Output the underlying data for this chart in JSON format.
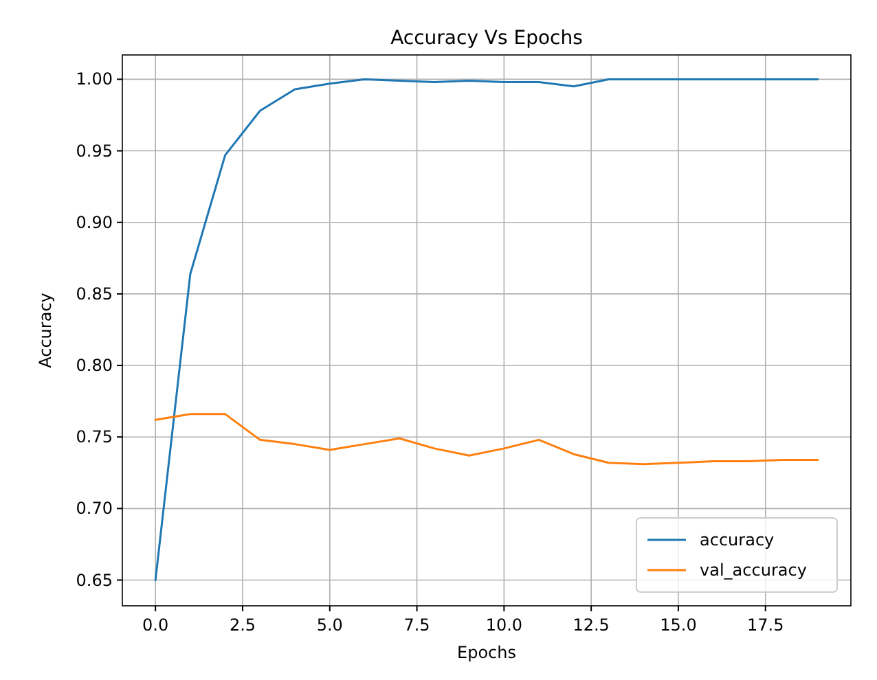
{
  "chart_data": {
    "type": "line",
    "title": "Accuracy Vs Epochs",
    "xlabel": "Epochs",
    "ylabel": "Accuracy",
    "x": [
      0,
      1,
      2,
      3,
      4,
      5,
      6,
      7,
      8,
      9,
      10,
      11,
      12,
      13,
      14,
      15,
      16,
      17,
      18,
      19
    ],
    "series": [
      {
        "name": "accuracy",
        "color": "#1f77b4",
        "values": [
          0.65,
          0.864,
          0.947,
          0.978,
          0.993,
          0.997,
          1.0,
          0.999,
          0.998,
          0.999,
          0.998,
          0.998,
          0.995,
          1.0,
          1.0,
          1.0,
          1.0,
          1.0,
          1.0,
          1.0
        ]
      },
      {
        "name": "val_accuracy",
        "color": "#ff7f0e",
        "values": [
          0.762,
          0.766,
          0.766,
          0.748,
          0.745,
          0.741,
          0.745,
          0.749,
          0.742,
          0.737,
          0.742,
          0.748,
          0.738,
          0.732,
          0.731,
          0.732,
          0.733,
          0.733,
          0.734,
          0.734
        ]
      }
    ],
    "xlim": [
      -0.95,
      19.95
    ],
    "xticks": [
      {
        "value": 0,
        "label": "0.0"
      },
      2.5,
      {
        "value": 5,
        "label": "5.0"
      },
      7.5,
      {
        "value": 10,
        "label": "10.0"
      },
      12.5,
      {
        "value": 15,
        "label": "15.0"
      },
      17.5
    ],
    "ylim": [
      0.632,
      1.017
    ],
    "yticks": [
      {
        "value": 0.65,
        "label": "0.65"
      },
      {
        "value": 0.7,
        "label": "0.70"
      },
      {
        "value": 0.75,
        "label": "0.75"
      },
      {
        "value": 0.8,
        "label": "0.80"
      },
      {
        "value": 0.85,
        "label": "0.85"
      },
      {
        "value": 0.9,
        "label": "0.90"
      },
      {
        "value": 0.95,
        "label": "0.95"
      },
      {
        "value": 1.0,
        "label": "1.00"
      }
    ],
    "grid": true,
    "legend": "bottom right",
    "marker": "none",
    "line_style": "solid"
  }
}
